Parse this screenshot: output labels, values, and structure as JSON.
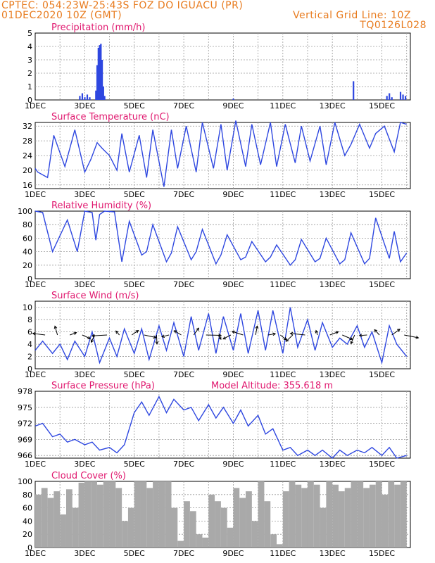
{
  "header": {
    "line1_left": "CPTEC:  054:23W-25:43S  FOZ DO IGUACU (PR)",
    "line2_left": "01DEC2020 10Z (GMT)",
    "line2_right": "Vertical Grid Line: 10Z",
    "line3_right": "TQ0126L028"
  },
  "colors": {
    "header": "#e87b1e",
    "title": "#e0186f",
    "line": "#2e47e0",
    "cloud": "#a9a9a9",
    "grid": "#9a9a9a"
  },
  "chart_data": [
    {
      "type": "bar",
      "title": "Precipitation (mm/h)",
      "ylim": [
        0,
        5
      ],
      "yticks": [
        "0",
        "1",
        "2",
        "3",
        "4",
        "5"
      ],
      "xticks": [
        "1DEC",
        "3DEC",
        "5DEC",
        "7DEC",
        "9DEC",
        "11DEC",
        "13DEC",
        "15DEC"
      ],
      "x": [
        2.8,
        2.9,
        3.0,
        3.1,
        3.2,
        3.45,
        3.5,
        3.55,
        3.6,
        3.65,
        3.7,
        3.75,
        3.8,
        9.0,
        13.85,
        15.2,
        15.3,
        15.4,
        15.75,
        15.85,
        15.95
      ],
      "values": [
        0.3,
        0.5,
        0.2,
        0.4,
        0.2,
        0.7,
        2.6,
        3.9,
        4.1,
        4.2,
        3.0,
        1.0,
        0.3,
        0.1,
        1.4,
        0.3,
        0.5,
        0.2,
        0.6,
        0.4,
        0.3
      ]
    },
    {
      "type": "line",
      "title": "Surface Temperature (nC)",
      "ylim": [
        15,
        33
      ],
      "yticks": [
        "16",
        "20",
        "24",
        "28",
        "32"
      ],
      "xticks": [
        "1DEC",
        "3DEC",
        "5DEC",
        "7DEC",
        "9DEC",
        "11DEC",
        "13DEC",
        "15DEC"
      ],
      "x": [
        1.0,
        1.1,
        1.5,
        1.75,
        2.2,
        2.6,
        3.0,
        3.25,
        3.5,
        3.7,
        4.0,
        4.3,
        4.5,
        4.8,
        5.2,
        5.5,
        5.75,
        6.2,
        6.5,
        6.75,
        7.1,
        7.5,
        7.75,
        8.2,
        8.5,
        8.75,
        9.1,
        9.5,
        9.75,
        10.1,
        10.5,
        10.75,
        11.1,
        11.5,
        11.75,
        12.1,
        12.5,
        12.75,
        13.1,
        13.5,
        13.75,
        14.1,
        14.5,
        14.75,
        15.1,
        15.5,
        15.75,
        16.0
      ],
      "values": [
        20.5,
        19.5,
        18.0,
        29.5,
        21.0,
        31.0,
        19.5,
        23.0,
        27.5,
        26.0,
        24.0,
        20.0,
        30.0,
        19.5,
        29.5,
        18.0,
        31.0,
        15.5,
        31.0,
        20.5,
        32.0,
        19.5,
        33.0,
        20.5,
        32.5,
        20.0,
        33.5,
        21.0,
        32.5,
        21.5,
        33.0,
        21.0,
        32.5,
        22.0,
        32.0,
        22.5,
        32.0,
        21.5,
        33.0,
        24.0,
        27.0,
        32.5,
        26.0,
        30.0,
        32.0,
        25.0,
        33.0,
        32.5
      ]
    },
    {
      "type": "line",
      "title": "Relative Humidity (%)",
      "ylim": [
        0,
        100
      ],
      "yticks": [
        "0",
        "20",
        "40",
        "60",
        "80",
        "100"
      ],
      "xticks": [
        "1DEC",
        "3DEC",
        "5DEC",
        "7DEC",
        "9DEC",
        "11DEC",
        "13DEC",
        "15DEC"
      ],
      "x": [
        1.0,
        1.3,
        1.7,
        2.3,
        2.7,
        3.0,
        3.3,
        3.45,
        3.6,
        3.8,
        4.2,
        4.5,
        4.8,
        5.3,
        5.5,
        5.75,
        6.3,
        6.5,
        6.75,
        7.3,
        7.5,
        7.75,
        8.3,
        8.5,
        8.75,
        9.3,
        9.5,
        9.75,
        10.3,
        10.5,
        10.75,
        11.3,
        11.5,
        11.75,
        12.3,
        12.5,
        12.75,
        13.3,
        13.5,
        13.75,
        14.3,
        14.5,
        14.75,
        15.3,
        15.5,
        15.75,
        16.0
      ],
      "values": [
        100,
        98,
        40,
        87,
        40,
        100,
        98,
        57,
        95,
        100,
        99,
        25,
        85,
        35,
        40,
        80,
        25,
        38,
        77,
        28,
        40,
        73,
        22,
        35,
        65,
        28,
        32,
        55,
        25,
        32,
        50,
        20,
        28,
        58,
        25,
        30,
        60,
        22,
        28,
        68,
        22,
        30,
        90,
        30,
        70,
        25,
        38
      ]
    },
    {
      "type": "line",
      "title": "Surface Wind (m/s)",
      "ylim": [
        0,
        11
      ],
      "yticks": [
        "0",
        "2",
        "4",
        "6",
        "8",
        "10"
      ],
      "xticks": [
        "1DEC",
        "3DEC",
        "5DEC",
        "7DEC",
        "9DEC",
        "11DEC",
        "13DEC",
        "15DEC"
      ],
      "x": [
        1.0,
        1.3,
        1.7,
        2.0,
        2.3,
        2.6,
        3.0,
        3.3,
        3.6,
        4.0,
        4.3,
        4.6,
        5.0,
        5.3,
        5.6,
        6.0,
        6.3,
        6.6,
        7.0,
        7.3,
        7.6,
        8.0,
        8.3,
        8.6,
        9.0,
        9.3,
        9.6,
        10.0,
        10.3,
        10.6,
        11.0,
        11.3,
        11.6,
        12.0,
        12.3,
        12.6,
        13.0,
        13.3,
        13.6,
        14.0,
        14.3,
        14.6,
        15.0,
        15.3,
        15.6,
        16.0
      ],
      "values": [
        3.0,
        4.5,
        2.5,
        4.0,
        1.5,
        4.5,
        2.0,
        6.0,
        1.0,
        5.0,
        2.0,
        6.5,
        2.5,
        6.5,
        1.5,
        7.0,
        3.0,
        7.5,
        2.0,
        8.5,
        3.0,
        9.0,
        2.5,
        8.5,
        3.0,
        9.0,
        2.5,
        9.5,
        3.0,
        9.5,
        2.5,
        10.0,
        3.5,
        8.0,
        3.0,
        7.5,
        3.5,
        5.0,
        4.0,
        7.0,
        3.5,
        6.0,
        1.0,
        7.0,
        4.0,
        2.0
      ]
    },
    {
      "type": "line",
      "title": "Surface Pressure (hPa)",
      "annotation": "Model Altitude: 355.618  m",
      "ylim": [
        965.5,
        978
      ],
      "yticks": [
        "966",
        "969",
        "972",
        "975",
        "978"
      ],
      "xticks": [
        "1DEC",
        "3DEC",
        "5DEC",
        "7DEC",
        "9DEC",
        "11DEC",
        "13DEC",
        "15DEC"
      ],
      "x": [
        1.0,
        1.3,
        1.7,
        2.0,
        2.3,
        2.6,
        3.0,
        3.3,
        3.6,
        4.0,
        4.3,
        4.6,
        5.0,
        5.3,
        5.6,
        6.0,
        6.3,
        6.6,
        7.0,
        7.3,
        7.6,
        8.0,
        8.3,
        8.6,
        9.0,
        9.3,
        9.6,
        10.0,
        10.3,
        10.6,
        11.0,
        11.3,
        11.6,
        12.0,
        12.3,
        12.6,
        13.0,
        13.3,
        13.6,
        14.0,
        14.3,
        14.6,
        15.0,
        15.3,
        15.6,
        16.0
      ],
      "values": [
        971.5,
        972.0,
        969.5,
        970.0,
        968.5,
        969.0,
        968.0,
        968.5,
        967.0,
        967.5,
        966.5,
        968.0,
        974.0,
        976.0,
        973.5,
        977.0,
        974.0,
        976.5,
        974.5,
        975.0,
        972.5,
        975.5,
        973.0,
        975.0,
        972.0,
        974.5,
        971.5,
        973.5,
        970.0,
        971.0,
        967.0,
        967.5,
        966.0,
        967.0,
        966.0,
        967.0,
        965.5,
        967.0,
        966.0,
        967.0,
        966.5,
        967.5,
        966.0,
        967.5,
        965.5,
        966.0
      ]
    },
    {
      "type": "bar",
      "title": "Cloud Cover (%)",
      "ylim": [
        0,
        100
      ],
      "yticks": [
        "0",
        "20",
        "40",
        "60",
        "80",
        "100"
      ],
      "xticks": [
        "1DEC",
        "3DEC",
        "5DEC",
        "7DEC",
        "9DEC",
        "11DEC",
        "13DEC",
        "15DEC"
      ],
      "x": [
        1.0,
        1.25,
        1.5,
        1.75,
        2.0,
        2.25,
        2.5,
        2.75,
        3.0,
        3.25,
        3.5,
        3.75,
        4.0,
        4.25,
        4.5,
        4.75,
        5.0,
        5.25,
        5.5,
        5.75,
        6.0,
        6.25,
        6.5,
        6.75,
        7.0,
        7.25,
        7.5,
        7.75,
        8.0,
        8.25,
        8.5,
        8.75,
        9.0,
        9.25,
        9.5,
        9.75,
        10.0,
        10.25,
        10.5,
        10.75,
        11.0,
        11.25,
        11.5,
        11.75,
        12.0,
        12.25,
        12.5,
        12.75,
        13.0,
        13.25,
        13.5,
        13.75,
        14.0,
        14.25,
        14.5,
        14.75,
        15.0,
        15.25,
        15.5,
        15.75
      ],
      "values": [
        80,
        90,
        75,
        85,
        50,
        88,
        60,
        98,
        100,
        100,
        95,
        100,
        100,
        90,
        40,
        60,
        100,
        100,
        90,
        100,
        100,
        100,
        60,
        10,
        70,
        55,
        20,
        15,
        80,
        70,
        60,
        30,
        90,
        75,
        85,
        40,
        100,
        70,
        20,
        5,
        85,
        100,
        95,
        90,
        100,
        95,
        60,
        100,
        95,
        85,
        90,
        100,
        100,
        90,
        95,
        100,
        80,
        100,
        95,
        100
      ]
    }
  ]
}
